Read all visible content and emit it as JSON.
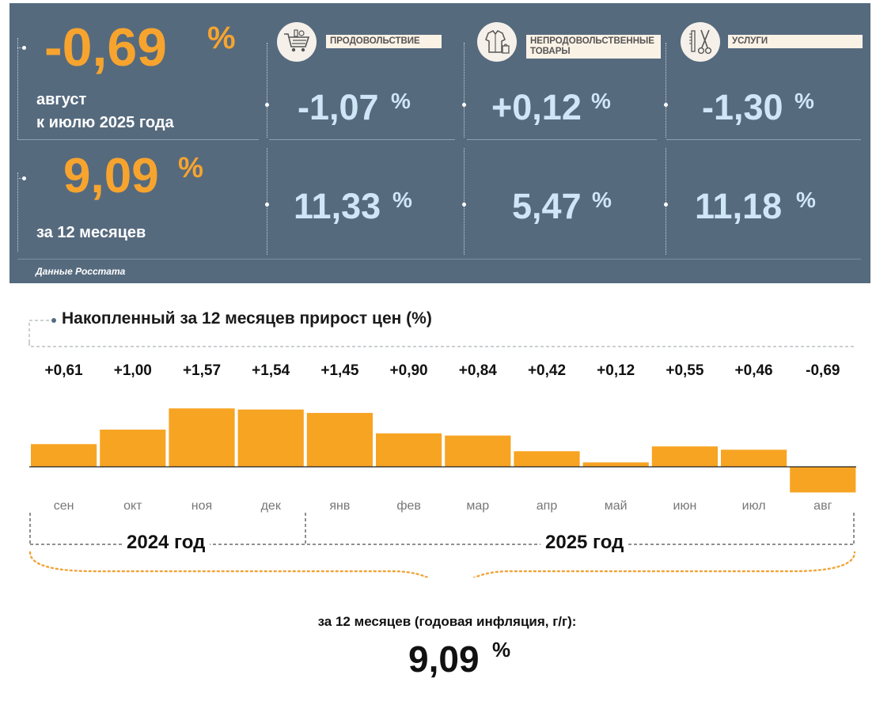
{
  "colors": {
    "panel": "#566a7e",
    "accent_orange": "#f7a42e",
    "value_blue": "#cfe6f6",
    "label_bg": "#fbf2e6",
    "bar": "#f7a423"
  },
  "headline": {
    "monthly_value": "-0,69",
    "monthly_pct": "%",
    "monthly_caption_line1": "август",
    "monthly_caption_line2": "к июлю 2025 года",
    "annual_value": "9,09",
    "annual_pct": "%",
    "annual_caption": "за 12 месяцев"
  },
  "categories": [
    {
      "label": "ПРОДОВОЛЬСТВИЕ",
      "icon": "shopping-cart-icon",
      "monthly": "-1,07",
      "annual": "11,33",
      "pct": "%"
    },
    {
      "label_line1": "НЕПРОДОВОЛЬСТВЕННЫЕ",
      "label_line2": "ТОВАРЫ",
      "icon": "clothes-icon",
      "monthly": "+0,12",
      "annual": "5,47",
      "pct": "%"
    },
    {
      "label": "УСЛУГИ",
      "icon": "scissors-comb-icon",
      "monthly": "-1,30",
      "annual": "11,18",
      "pct": "%"
    }
  ],
  "source": "Данные Росстата",
  "chart_data": {
    "type": "bar",
    "title": "Накопленный за 12 месяцев прирост цен (%)",
    "categories": [
      "сен",
      "окт",
      "ноя",
      "дек",
      "янв",
      "фев",
      "мар",
      "апр",
      "май",
      "июн",
      "июл",
      "авг"
    ],
    "values": [
      0.61,
      1.0,
      1.57,
      1.54,
      1.45,
      0.9,
      0.84,
      0.42,
      0.12,
      0.55,
      0.46,
      -0.69
    ],
    "value_labels": [
      "+0,61",
      "+1,00",
      "+1,57",
      "+1,54",
      "+1,45",
      "+0,90",
      "+0,84",
      "+0,42",
      "+0,12",
      "+0,55",
      "+0,46",
      "-0,69"
    ],
    "year_groups": [
      {
        "label": "2024 год",
        "months": [
          "сен",
          "окт",
          "ноя",
          "дек"
        ]
      },
      {
        "label": "2025 год",
        "months": [
          "янв",
          "фев",
          "мар",
          "апр",
          "май",
          "июн",
          "июл",
          "авг"
        ]
      }
    ],
    "annual_caption": "за 12 месяцев (годовая инфляция, г/г):",
    "annual_value": "9,09",
    "annual_pct": "%"
  }
}
